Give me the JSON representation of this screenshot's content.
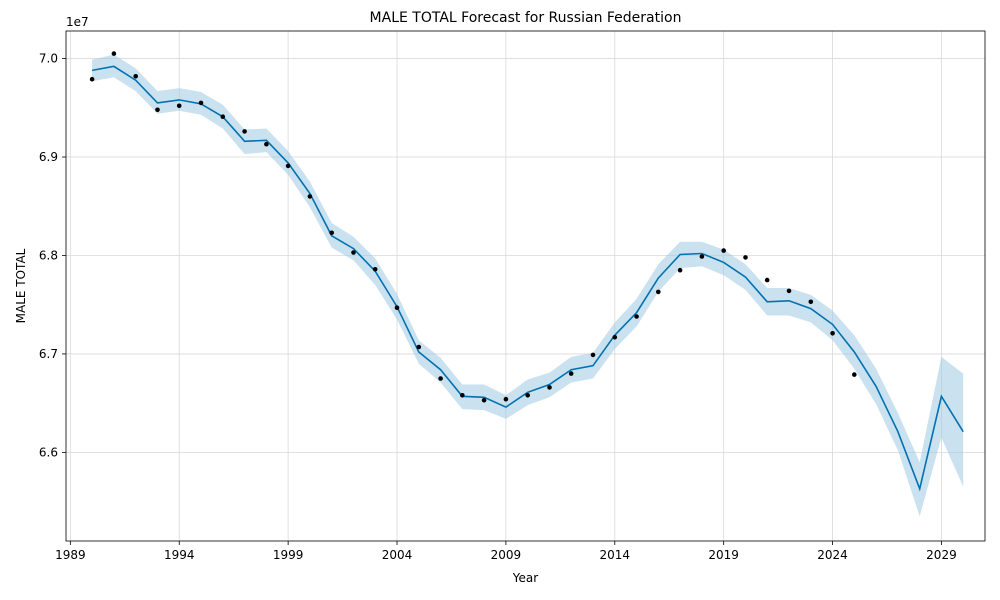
{
  "chart_data": {
    "type": "line",
    "title": "MALE TOTAL Forecast for Russian Federation",
    "xlabel": "Year",
    "ylabel": "MALE TOTAL",
    "y_offset_label": "1e7",
    "xlim": [
      1988.8,
      2031.0
    ],
    "ylim": [
      65100000,
      70280000
    ],
    "x_ticks": [
      1989,
      1994,
      1999,
      2004,
      2009,
      2014,
      2019,
      2024,
      2029
    ],
    "x_tick_labels": [
      "1989",
      "1994",
      "1999",
      "2004",
      "2009",
      "2014",
      "2019",
      "2024",
      "2029"
    ],
    "y_ticks": [
      66000000,
      67000000,
      68000000,
      69000000,
      70000000
    ],
    "y_tick_labels": [
      "6.6",
      "6.7",
      "6.8",
      "6.9",
      "7.0"
    ],
    "grid": true,
    "colors": {
      "forecast": "#0072b2",
      "interval": "#9fc9e2",
      "actual": "#000000"
    },
    "actual": {
      "x": [
        1990,
        1991,
        1992,
        1993,
        1994,
        1995,
        1996,
        1997,
        1998,
        1999,
        2000,
        2001,
        2002,
        2003,
        2004,
        2005,
        2006,
        2007,
        2008,
        2009,
        2010,
        2011,
        2012,
        2013,
        2014,
        2015,
        2016,
        2017,
        2018,
        2019,
        2020,
        2021,
        2022,
        2023,
        2024,
        2025
      ],
      "y": [
        69790000,
        70050000,
        69820000,
        69480000,
        69520000,
        69550000,
        69410000,
        69260000,
        69130000,
        68910000,
        68600000,
        68230000,
        68030000,
        67860000,
        67470000,
        67070000,
        66750000,
        66580000,
        66530000,
        66540000,
        66580000,
        66660000,
        66800000,
        66990000,
        67170000,
        67380000,
        67630000,
        67850000,
        67990000,
        68050000,
        67980000,
        67750000,
        67640000,
        67530000,
        67210000,
        66790000
      ]
    },
    "forecast": {
      "x": [
        1990,
        1991,
        1992,
        1993,
        1994,
        1995,
        1996,
        1997,
        1998,
        1999,
        2000,
        2001,
        2002,
        2003,
        2004,
        2005,
        2006,
        2007,
        2008,
        2009,
        2010,
        2011,
        2012,
        2013,
        2014,
        2015,
        2016,
        2017,
        2018,
        2019,
        2020,
        2021,
        2022,
        2023,
        2024,
        2025,
        2026,
        2027,
        2028,
        2029,
        2030
      ],
      "y": [
        69880000,
        69920000,
        69780000,
        69550000,
        69580000,
        69540000,
        69410000,
        69160000,
        69170000,
        68940000,
        68630000,
        68200000,
        68070000,
        67840000,
        67480000,
        67020000,
        66840000,
        66570000,
        66560000,
        66460000,
        66610000,
        66690000,
        66840000,
        66880000,
        67190000,
        67420000,
        67770000,
        68010000,
        68020000,
        67930000,
        67780000,
        67530000,
        67540000,
        67460000,
        67300000,
        67020000,
        66670000,
        66210000,
        65630000,
        66570000,
        66210000
      ],
      "lower": [
        69770000,
        69810000,
        69670000,
        69440000,
        69470000,
        69430000,
        69290000,
        69030000,
        69050000,
        68820000,
        68490000,
        68080000,
        67950000,
        67700000,
        67350000,
        66900000,
        66710000,
        66440000,
        66430000,
        66340000,
        66480000,
        66560000,
        66710000,
        66750000,
        67050000,
        67280000,
        67630000,
        67870000,
        67890000,
        67800000,
        67650000,
        67390000,
        67390000,
        67320000,
        67140000,
        66850000,
        66490000,
        66020000,
        65350000,
        66150000,
        65650000
      ],
      "upper": [
        69990000,
        70040000,
        69900000,
        69670000,
        69700000,
        69660000,
        69530000,
        69280000,
        69290000,
        69060000,
        68750000,
        68330000,
        68190000,
        67970000,
        67610000,
        67140000,
        66960000,
        66690000,
        66690000,
        66580000,
        66740000,
        66810000,
        66970000,
        67010000,
        67320000,
        67560000,
        67910000,
        68140000,
        68140000,
        68060000,
        67910000,
        67670000,
        67670000,
        67600000,
        67440000,
        67190000,
        66850000,
        66400000,
        65900000,
        66970000,
        66800000
      ]
    }
  }
}
